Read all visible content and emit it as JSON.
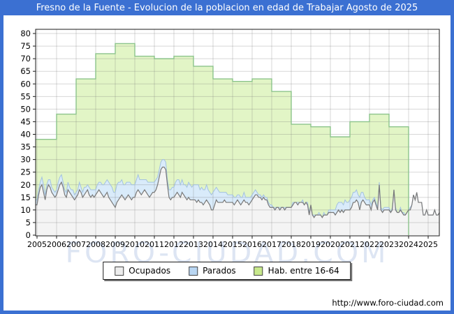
{
  "window": {
    "title": "Fresno de la Fuente - Evolucion de la poblacion en edad de Trabajar Agosto de 2025",
    "frame_color": "#3b70d2",
    "footer_url": "http://www.foro-ciudad.com",
    "watermark": "FORO-CIUDAD.COM"
  },
  "legend": {
    "items": [
      {
        "label": "Ocupados",
        "swatch": "#ededed"
      },
      {
        "label": "Parados",
        "swatch": "#b9d6f2"
      },
      {
        "label": "Hab. entre 16-64",
        "swatch": "#c8e98c"
      }
    ]
  },
  "chart_data": {
    "type": "area",
    "title": "Fresno de la Fuente - Evolucion de la poblacion en edad de Trabajar Agosto de 2025",
    "xlabel": "",
    "ylabel": "",
    "x_axis": {
      "years": [
        2005,
        2006,
        2007,
        2008,
        2009,
        2010,
        2011,
        2012,
        2013,
        2014,
        2015,
        2016,
        2017,
        2018,
        2019,
        2020,
        2021,
        2022,
        2023,
        2024,
        2025
      ]
    },
    "y_axis": {
      "min": 0,
      "max": 80,
      "step": 5
    },
    "grid": true,
    "legend_position": "bottom",
    "series": {
      "hab_16_64": {
        "label": "Hab. entre 16-64",
        "note": "yearly stepped values, data ends January 2024",
        "years": [
          2005,
          2006,
          2007,
          2008,
          2009,
          2010,
          2011,
          2012,
          2013,
          2014,
          2015,
          2016,
          2017,
          2018,
          2019,
          2020,
          2021,
          2022,
          2023
        ],
        "values": [
          38,
          48,
          62,
          72,
          76,
          71,
          70,
          71,
          67,
          62,
          61,
          62,
          57,
          44,
          43,
          39,
          45,
          48,
          43
        ],
        "fill": "#e2f5c6",
        "line": "#8cc48c"
      },
      "ocupados": {
        "label": "Ocupados",
        "note": "monthly values Jan 2005 - Aug 2025, approximate",
        "fill": "#f4f4f4",
        "line": "#787878",
        "monthly": {
          "2005": [
            12,
            16,
            19,
            20,
            17,
            14,
            18,
            20,
            19,
            17,
            16,
            15
          ],
          "2006": [
            16,
            18,
            20,
            21,
            19,
            16,
            15,
            18,
            17,
            16,
            15,
            14
          ],
          "2007": [
            15,
            16,
            18,
            17,
            15,
            16,
            17,
            18,
            16,
            15,
            16,
            15
          ],
          "2008": [
            16,
            17,
            18,
            17,
            16,
            15,
            16,
            17,
            15,
            14,
            13,
            12
          ],
          "2009": [
            11,
            13,
            14,
            15,
            16,
            15,
            14,
            15,
            16,
            15,
            14,
            15
          ],
          "2010": [
            15,
            17,
            18,
            17,
            16,
            17,
            18,
            17,
            16,
            15,
            16,
            17
          ],
          "2011": [
            17,
            18,
            20,
            23,
            26,
            27,
            27,
            26,
            20,
            15,
            14,
            15
          ],
          "2012": [
            15,
            16,
            17,
            16,
            15,
            17,
            16,
            15,
            14,
            15,
            14,
            14
          ],
          "2013": [
            14,
            14,
            13,
            14,
            13,
            13,
            12,
            13,
            14,
            13,
            12,
            10
          ],
          "2014": [
            10,
            12,
            14,
            13,
            13,
            13,
            13,
            14,
            13,
            13,
            13,
            13
          ],
          "2015": [
            13,
            12,
            13,
            14,
            13,
            12,
            13,
            14,
            13,
            13,
            12,
            13
          ],
          "2016": [
            14,
            15,
            16,
            16,
            15,
            15,
            14,
            15,
            14,
            14,
            12,
            11
          ],
          "2017": [
            11,
            11,
            10,
            11,
            11,
            10,
            11,
            11,
            10,
            11,
            11,
            11
          ],
          "2018": [
            11,
            12,
            13,
            13,
            12,
            13,
            13,
            13,
            12,
            13,
            12,
            8
          ],
          "2019": [
            12,
            8,
            7,
            8,
            8,
            8,
            8,
            7,
            8,
            8,
            8,
            9
          ],
          "2020": [
            9,
            9,
            9,
            8,
            9,
            10,
            9,
            10,
            9,
            10,
            10,
            10
          ],
          "2021": [
            10,
            11,
            13,
            13,
            14,
            13,
            10,
            13,
            14,
            13,
            12,
            12
          ],
          "2022": [
            12,
            10,
            13,
            14,
            12,
            10,
            20,
            10,
            9,
            10,
            10,
            10
          ],
          "2023": [
            10,
            9,
            10,
            18,
            10,
            9,
            9,
            10,
            9,
            8,
            8,
            9
          ],
          "2024": [
            10,
            10,
            12,
            16,
            14,
            17,
            13,
            13,
            13,
            8,
            8,
            10
          ],
          "2025": [
            8,
            8,
            8,
            8,
            10,
            8,
            8,
            9
          ]
        }
      },
      "parados": {
        "label": "Parados",
        "note": "monthly values stacked on top of Ocupados, approximate",
        "fill": "#d9ebfa",
        "line": "#a3c2e0",
        "monthly": {
          "2005": [
            2,
            2,
            2,
            3,
            3,
            2,
            2,
            2,
            3,
            2,
            2,
            2
          ],
          "2006": [
            2,
            3,
            3,
            3,
            2,
            2,
            2,
            3,
            2,
            2,
            3,
            2
          ],
          "2007": [
            2,
            2,
            3,
            2,
            2,
            3,
            2,
            2,
            3,
            3,
            2,
            3
          ],
          "2008": [
            2,
            3,
            3,
            4,
            4,
            5,
            5,
            5,
            6,
            6,
            6,
            5
          ],
          "2009": [
            6,
            7,
            7,
            6,
            6,
            5,
            6,
            6,
            5,
            6,
            6,
            5
          ],
          "2010": [
            5,
            5,
            6,
            5,
            6,
            5,
            4,
            5,
            5,
            6,
            5,
            4
          ],
          "2011": [
            4,
            4,
            3,
            3,
            3,
            3,
            3,
            3,
            2,
            3,
            4,
            4
          ],
          "2012": [
            4,
            5,
            5,
            6,
            5,
            5,
            4,
            5,
            5,
            6,
            6,
            5
          ],
          "2013": [
            6,
            6,
            7,
            6,
            5,
            6,
            6,
            5,
            6,
            5,
            5,
            6
          ],
          "2014": [
            7,
            6,
            5,
            5,
            4,
            4,
            4,
            3,
            4,
            3,
            3,
            3
          ],
          "2015": [
            3,
            3,
            2,
            2,
            3,
            3,
            2,
            3,
            2,
            2,
            3,
            2
          ],
          "2016": [
            2,
            2,
            2,
            1,
            1,
            1,
            1,
            1,
            1,
            1,
            1,
            1
          ],
          "2017": [
            1,
            0,
            1,
            0,
            0,
            1,
            0,
            0,
            1,
            0,
            0,
            0
          ],
          "2018": [
            0,
            1,
            0,
            0,
            1,
            0,
            0,
            1,
            0,
            0,
            1,
            1
          ],
          "2019": [
            0,
            0,
            1,
            0,
            0,
            1,
            0,
            0,
            1,
            0,
            0,
            1
          ],
          "2020": [
            1,
            1,
            1,
            2,
            3,
            3,
            4,
            3,
            3,
            4,
            3,
            3
          ],
          "2021": [
            4,
            4,
            4,
            4,
            4,
            3,
            5,
            4,
            3,
            2,
            2,
            2
          ],
          "2022": [
            2,
            2,
            1,
            1,
            1,
            1,
            1,
            1,
            1,
            1,
            1,
            1
          ],
          "2023": [
            1,
            0,
            1,
            0,
            1,
            0,
            0,
            1,
            0,
            1,
            0,
            0
          ],
          "2024": [
            0,
            1,
            0,
            0,
            0,
            0,
            0,
            0,
            0,
            0,
            0,
            0
          ],
          "2025": [
            0,
            0,
            0,
            0,
            0,
            0,
            0,
            0
          ]
        }
      }
    }
  }
}
